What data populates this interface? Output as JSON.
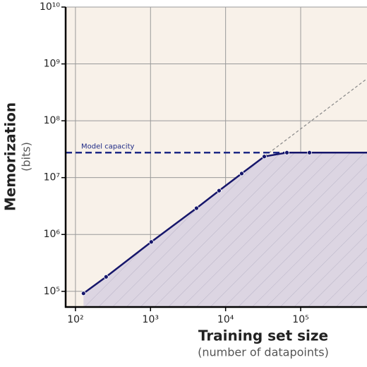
{
  "chart_data": {
    "type": "line",
    "x_label": "Training set size",
    "x_sublabel": "(number of datapoints)",
    "y_label": "Memorization",
    "y_sublabel": "(bits)",
    "x": [
      128,
      256,
      1024,
      4096,
      8192,
      16384,
      32768,
      65536,
      131072
    ],
    "series": [
      {
        "color": "#16166b",
        "values": [
          92000,
          180000,
          740000,
          2900000,
          5900000,
          11800000,
          23500000,
          27500000,
          27500000
        ]
      }
    ],
    "capacity": {
      "label": "Model capacity",
      "value": 27500000,
      "color": "#1f2a86"
    },
    "trend_line": {
      "x": [
        128,
        765000
      ],
      "y": [
        92000,
        550000000
      ],
      "color": "#888888"
    },
    "xlim": [
      74,
      765000
    ],
    "ylim": [
      53000,
      10000000000
    ],
    "log_x": true,
    "log_y": true,
    "grid": true,
    "xticks": [
      {
        "value": 100,
        "label": "10²"
      },
      {
        "value": 1000,
        "label": "10³"
      },
      {
        "value": 10000,
        "label": "10⁴"
      },
      {
        "value": 100000,
        "label": "10⁵"
      }
    ],
    "yticks": [
      {
        "value": 100000,
        "label": "10⁵"
      },
      {
        "value": 1000000,
        "label": "10⁶"
      },
      {
        "value": 10000000,
        "label": "10⁷"
      },
      {
        "value": 100000000,
        "label": "10⁸"
      },
      {
        "value": 1000000000,
        "label": "10⁹"
      },
      {
        "value": 10000000000,
        "label": "10¹⁰"
      }
    ]
  }
}
